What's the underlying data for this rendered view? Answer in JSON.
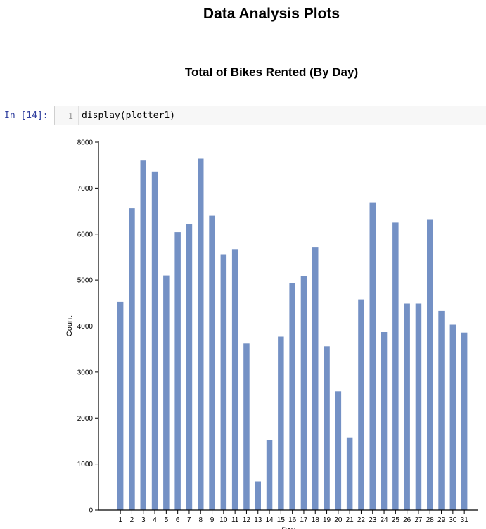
{
  "headings": {
    "title": "Data Analysis Plots",
    "subtitle": "Total of Bikes Rented (By Day)"
  },
  "notebook_cell": {
    "prompt": "In [14]:",
    "line_number": "1",
    "code": "display(plotter1)"
  },
  "chart_data": {
    "type": "bar",
    "title": "",
    "xlabel": "Day",
    "ylabel": "Count",
    "categories": [
      "1",
      "2",
      "3",
      "4",
      "5",
      "6",
      "7",
      "8",
      "9",
      "10",
      "11",
      "12",
      "13",
      "14",
      "15",
      "16",
      "17",
      "18",
      "19",
      "20",
      "21",
      "22",
      "23",
      "24",
      "25",
      "26",
      "27",
      "28",
      "29",
      "30",
      "31"
    ],
    "values": [
      4530,
      6560,
      7600,
      7360,
      5100,
      6040,
      6210,
      7640,
      6400,
      5560,
      5670,
      3620,
      620,
      1520,
      3770,
      4940,
      5080,
      5720,
      3560,
      2580,
      1580,
      4580,
      6690,
      3870,
      6250,
      4490,
      4490,
      6310,
      4330,
      4030,
      3860
    ],
    "ylim": [
      0,
      8000
    ],
    "yticks": [
      0,
      1000,
      2000,
      3000,
      4000,
      5000,
      6000,
      7000,
      8000
    ],
    "bar_color": "#7491c5",
    "grid": false
  }
}
